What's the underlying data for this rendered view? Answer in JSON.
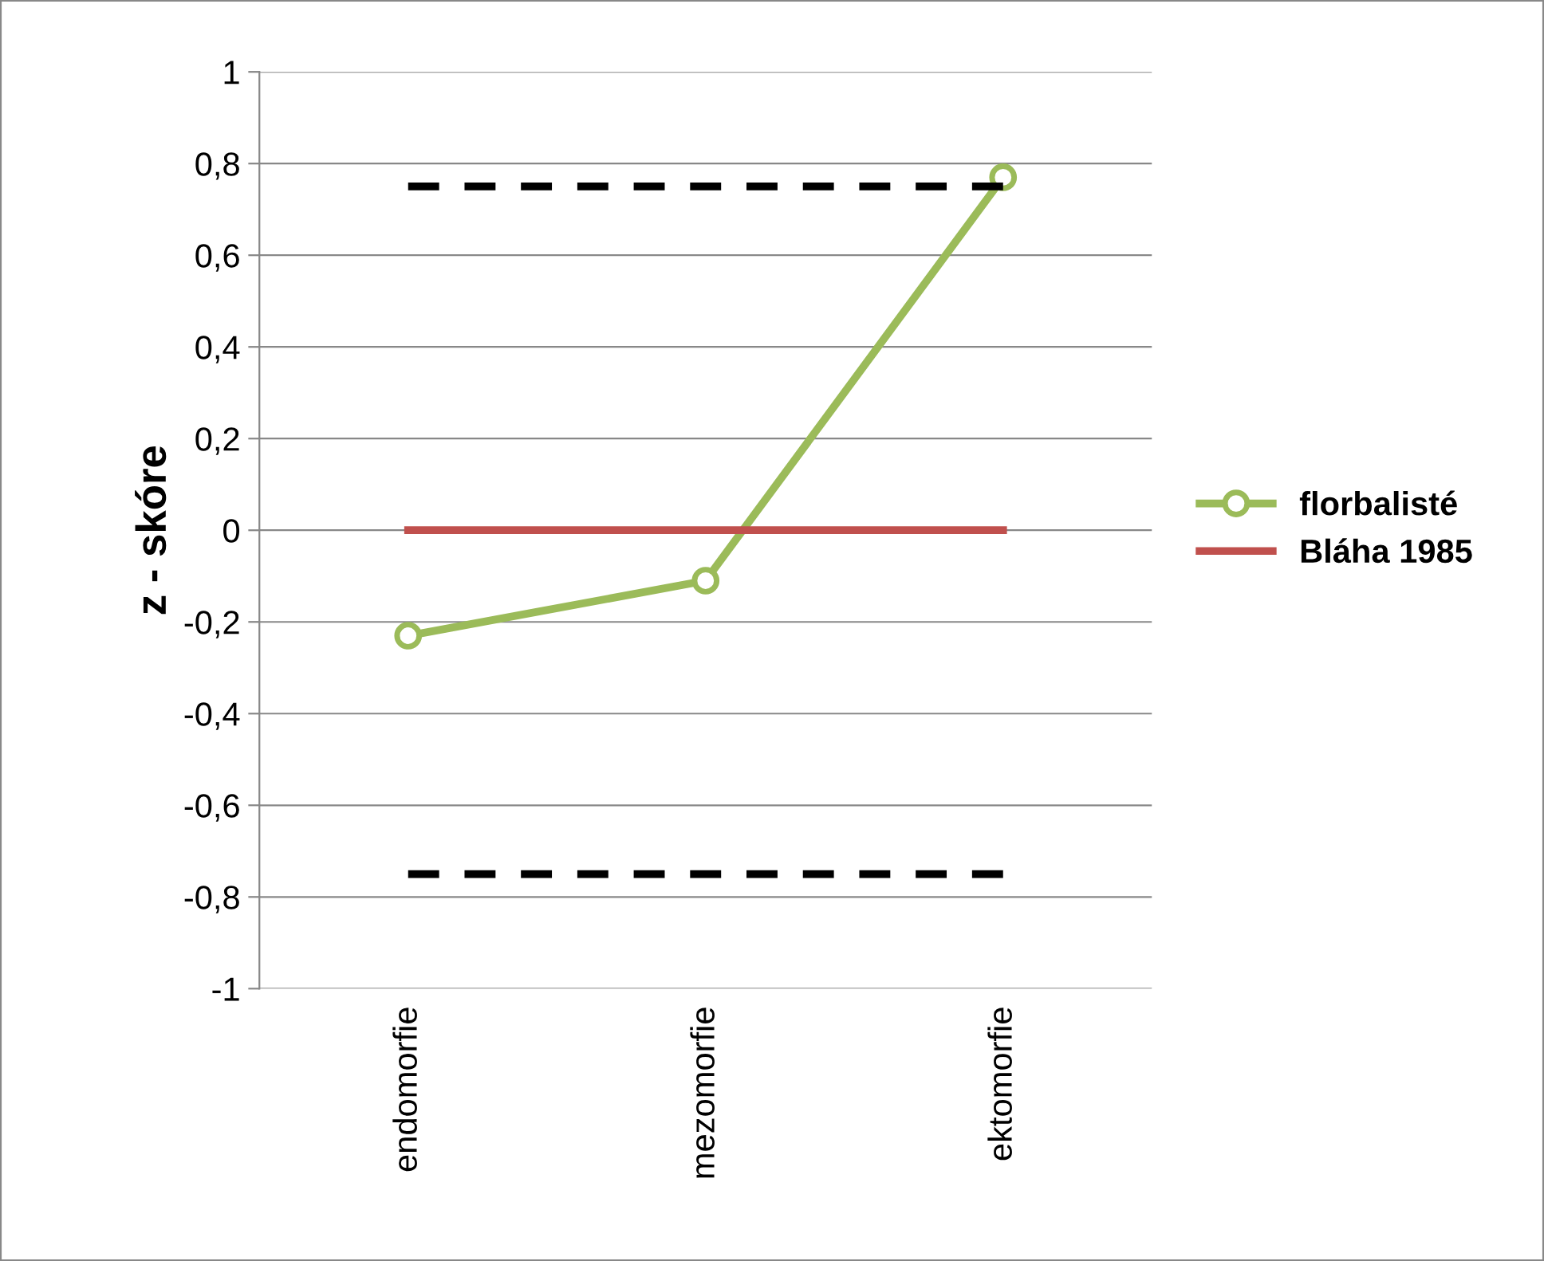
{
  "chart_data": {
    "type": "line",
    "ylabel": "z - skóre",
    "categories": [
      "endomorfie",
      "mezomorfie",
      "ektomorfie"
    ],
    "series": [
      {
        "name": "florbalisté",
        "color": "#9bbb59",
        "values": [
          -0.23,
          -0.11,
          0.77
        ],
        "marker": "circle"
      },
      {
        "name": "Bláha 1985",
        "color": "#c0504d",
        "values": [
          0,
          0,
          0
        ],
        "marker": "none"
      },
      {
        "color": "#000000",
        "values": [
          0.75,
          0.75,
          0.75
        ],
        "marker": "none",
        "line_style": "dashed"
      },
      {
        "color": "#000000",
        "values": [
          -0.75,
          -0.75,
          -0.75
        ],
        "marker": "none",
        "line_style": "dashed"
      }
    ],
    "ylim": [
      -1,
      1
    ],
    "yticks": [
      -1,
      {
        "value": -0.8,
        "label": "-0,8"
      },
      {
        "value": -0.6,
        "label": "-0,6"
      },
      {
        "value": -0.4,
        "label": "-0,4"
      },
      {
        "value": -0.2,
        "label": "-0,2"
      },
      0,
      {
        "value": 0.2,
        "label": "0,2"
      },
      {
        "value": 0.4,
        "label": "0,4"
      },
      {
        "value": 0.6,
        "label": "0,6"
      },
      {
        "value": 0.8,
        "label": "0,8"
      },
      1
    ],
    "grid": "y",
    "legend": "right"
  }
}
